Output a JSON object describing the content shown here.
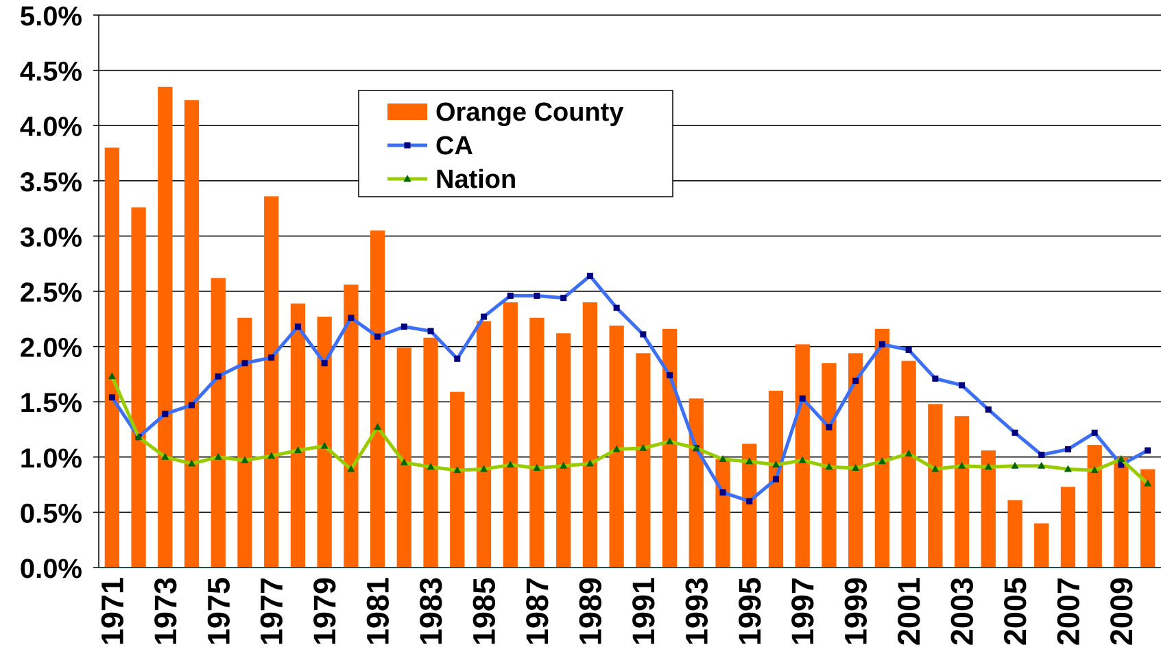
{
  "chart_data": {
    "type": "bar",
    "categories": [
      "1971",
      null,
      "1973",
      null,
      "1975",
      null,
      "1977",
      null,
      "1979",
      null,
      "1981",
      null,
      "1983",
      null,
      "1985",
      null,
      "1987",
      null,
      "1989",
      null,
      "1991",
      null,
      "1993",
      null,
      "1995",
      null,
      "1997",
      null,
      "1999",
      null,
      "2001",
      null,
      "2003",
      null,
      "2005",
      null,
      "2007",
      null,
      "2009",
      null
    ],
    "series": [
      {
        "name": "Orange County",
        "type": "bar",
        "color": "#ff6600",
        "values": [
          3.8,
          3.26,
          4.35,
          4.23,
          2.62,
          2.26,
          3.36,
          2.39,
          2.27,
          2.56,
          3.05,
          1.99,
          2.08,
          1.59,
          2.23,
          2.4,
          2.26,
          2.12,
          2.4,
          2.19,
          1.94,
          2.16,
          1.53,
          0.98,
          1.12,
          1.6,
          2.02,
          1.85,
          1.94,
          2.16,
          1.87,
          1.48,
          1.37,
          1.06,
          0.61,
          0.4,
          0.73,
          1.11,
          1.0,
          0.89
        ]
      },
      {
        "name": "CA",
        "type": "line",
        "color": "#3d6ff5",
        "marker": "square",
        "marker_color": "#000080",
        "values": [
          1.54,
          1.18,
          1.39,
          1.47,
          1.73,
          1.85,
          1.9,
          2.18,
          1.85,
          2.26,
          2.09,
          2.18,
          2.14,
          1.89,
          2.27,
          2.46,
          2.46,
          2.44,
          2.64,
          2.35,
          2.11,
          1.74,
          1.08,
          0.68,
          0.6,
          0.8,
          1.53,
          1.27,
          1.69,
          2.02,
          1.97,
          1.71,
          1.65,
          1.43,
          1.22,
          1.02,
          1.07,
          1.22,
          0.93,
          1.06
        ]
      },
      {
        "name": "Nation",
        "type": "line",
        "color": "#99cc00",
        "marker": "triangle",
        "marker_color": "#006600",
        "values": [
          1.73,
          1.18,
          1.0,
          0.94,
          1.0,
          0.97,
          1.01,
          1.06,
          1.1,
          0.89,
          1.27,
          0.95,
          0.91,
          0.88,
          0.89,
          0.93,
          0.9,
          0.92,
          0.94,
          1.07,
          1.08,
          1.14,
          1.08,
          0.98,
          0.96,
          0.93,
          0.97,
          0.91,
          0.9,
          0.96,
          1.03,
          0.89,
          0.92,
          0.91,
          0.92,
          0.92,
          0.89,
          0.88,
          0.98,
          0.76
        ]
      }
    ],
    "ylim": [
      0,
      5
    ],
    "yticks": [
      {
        "value": 0,
        "label": "0.0%"
      },
      {
        "value": 0.5,
        "label": "0.5%"
      },
      {
        "value": 1,
        "label": "1.0%"
      },
      {
        "value": 1.5,
        "label": "1.5%"
      },
      {
        "value": 2,
        "label": "2.0%"
      },
      {
        "value": 2.5,
        "label": "2.5%"
      },
      {
        "value": 3,
        "label": "3.0%"
      },
      {
        "value": 3.5,
        "label": "3.5%"
      },
      {
        "value": 4,
        "label": "4.0%"
      },
      {
        "value": 4.5,
        "label": "4.5%"
      },
      {
        "value": 5,
        "label": "5.0%"
      }
    ],
    "grid": true,
    "legend": "top"
  }
}
